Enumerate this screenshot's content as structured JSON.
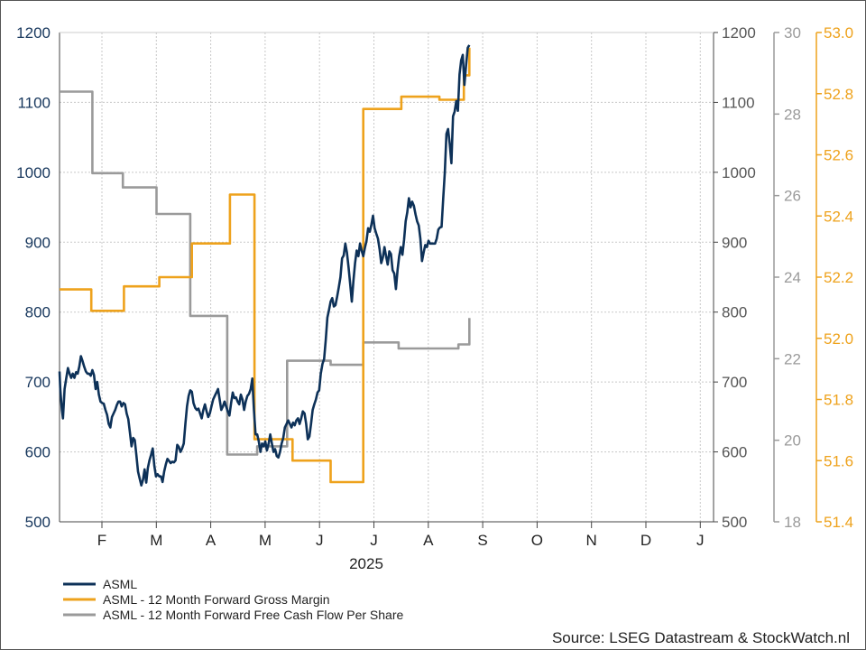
{
  "chart_data": {
    "type": "line",
    "xlabel": "2025",
    "x_months": [
      "F",
      "M",
      "A",
      "M",
      "J",
      "J",
      "A",
      "S",
      "O",
      "N",
      "D",
      "J"
    ],
    "axes": {
      "price_left": {
        "min": 500,
        "max": 1200,
        "ticks": [
          "500",
          "600",
          "700",
          "800",
          "900",
          "1000",
          "1100",
          "1200"
        ],
        "color": "#16365c"
      },
      "price_right": {
        "min": 500,
        "max": 1200,
        "ticks": [
          "500",
          "600",
          "700",
          "800",
          "900",
          "1000",
          "1100",
          "1200"
        ],
        "color": "#555555"
      },
      "fcf": {
        "min": 18,
        "max": 30,
        "ticks": [
          "18",
          "20",
          "22",
          "24",
          "26",
          "28",
          "30"
        ],
        "color": "#9a9a9a"
      },
      "gross_margin": {
        "min": 51.4,
        "max": 53.0,
        "ticks": [
          "51.4",
          "51.6",
          "51.8",
          "52.0",
          "52.2",
          "52.4",
          "52.6",
          "52.8",
          "53.0"
        ],
        "color": "#eea21c"
      }
    },
    "grid": true,
    "legend_position": "bottom-left",
    "series": [
      {
        "name": "ASML",
        "axis": "price_left",
        "color": "#0d3158",
        "points": [
          [
            0,
            715
          ],
          [
            0.03,
            690
          ],
          [
            0.06,
            660
          ],
          [
            0.08,
            648
          ],
          [
            0.11,
            690
          ],
          [
            0.14,
            705
          ],
          [
            0.17,
            720
          ],
          [
            0.2,
            712
          ],
          [
            0.23,
            706
          ],
          [
            0.26,
            712
          ],
          [
            0.29,
            706
          ],
          [
            0.32,
            714
          ],
          [
            0.35,
            712
          ],
          [
            0.38,
            722
          ],
          [
            0.41,
            737
          ],
          [
            0.44,
            730
          ],
          [
            0.47,
            722
          ],
          [
            0.5,
            715
          ],
          [
            0.53,
            712
          ],
          [
            0.56,
            712
          ],
          [
            0.59,
            709
          ],
          [
            0.62,
            717
          ],
          [
            0.65,
            710
          ],
          [
            0.68,
            690
          ],
          [
            0.71,
            700
          ],
          [
            0.74,
            682
          ],
          [
            0.77,
            672
          ],
          [
            0.8,
            670
          ],
          [
            0.83,
            669
          ],
          [
            0.86,
            660
          ],
          [
            0.89,
            653
          ],
          [
            0.92,
            640
          ],
          [
            0.95,
            635
          ],
          [
            0.98,
            650
          ],
          [
            1.01,
            655
          ],
          [
            1.04,
            660
          ],
          [
            1.07,
            667
          ],
          [
            1.1,
            672
          ],
          [
            1.13,
            672
          ],
          [
            1.16,
            665
          ],
          [
            1.19,
            670
          ],
          [
            1.22,
            668
          ],
          [
            1.25,
            655
          ],
          [
            1.28,
            647
          ],
          [
            1.31,
            628
          ],
          [
            1.34,
            608
          ],
          [
            1.37,
            620
          ],
          [
            1.4,
            617
          ],
          [
            1.43,
            595
          ],
          [
            1.46,
            572
          ],
          [
            1.49,
            562
          ],
          [
            1.52,
            552
          ],
          [
            1.55,
            560
          ],
          [
            1.58,
            575
          ],
          [
            1.61,
            556
          ],
          [
            1.64,
            577
          ],
          [
            1.67,
            588
          ],
          [
            1.7,
            596
          ],
          [
            1.73,
            605
          ],
          [
            1.76,
            580
          ],
          [
            1.79,
            565
          ],
          [
            1.82,
            568
          ],
          [
            1.85,
            565
          ],
          [
            1.88,
            565
          ],
          [
            1.91,
            557
          ],
          [
            1.94,
            572
          ],
          [
            1.97,
            582
          ],
          [
            2.0,
            590
          ],
          [
            2.03,
            587
          ],
          [
            2.06,
            584
          ],
          [
            2.09,
            586
          ],
          [
            2.12,
            585
          ],
          [
            2.15,
            588
          ],
          [
            2.18,
            610
          ],
          [
            2.21,
            607
          ],
          [
            2.24,
            600
          ],
          [
            2.27,
            605
          ],
          [
            2.3,
            612
          ],
          [
            2.33,
            640
          ],
          [
            2.36,
            665
          ],
          [
            2.39,
            680
          ],
          [
            2.42,
            688
          ],
          [
            2.45,
            686
          ],
          [
            2.48,
            670
          ],
          [
            2.51,
            663
          ],
          [
            2.54,
            660
          ],
          [
            2.57,
            662
          ],
          [
            2.6,
            655
          ],
          [
            2.63,
            648
          ],
          [
            2.66,
            660
          ],
          [
            2.69,
            668
          ],
          [
            2.72,
            658
          ],
          [
            2.75,
            650
          ],
          [
            2.78,
            655
          ],
          [
            2.81,
            665
          ],
          [
            2.84,
            675
          ],
          [
            2.87,
            680
          ],
          [
            2.9,
            685
          ],
          [
            2.93,
            690
          ],
          [
            2.96,
            675
          ],
          [
            2.99,
            660
          ],
          [
            3.02,
            665
          ],
          [
            3.05,
            672
          ],
          [
            3.08,
            665
          ],
          [
            3.11,
            658
          ],
          [
            3.14,
            652
          ],
          [
            3.17,
            670
          ],
          [
            3.2,
            685
          ],
          [
            3.23,
            677
          ],
          [
            3.26,
            678
          ],
          [
            3.29,
            672
          ],
          [
            3.32,
            668
          ],
          [
            3.35,
            682
          ],
          [
            3.38,
            675
          ],
          [
            3.41,
            660
          ],
          [
            3.44,
            672
          ],
          [
            3.47,
            680
          ],
          [
            3.5,
            683
          ],
          [
            3.53,
            690
          ],
          [
            3.56,
            705
          ],
          [
            3.59,
            660
          ],
          [
            3.62,
            625
          ],
          [
            3.65,
            625
          ],
          [
            3.68,
            615
          ],
          [
            3.71,
            600
          ],
          [
            3.74,
            612
          ],
          [
            3.77,
            608
          ],
          [
            3.8,
            615
          ],
          [
            3.83,
            602
          ],
          [
            3.86,
            612
          ],
          [
            3.89,
            625
          ],
          [
            3.92,
            612
          ],
          [
            3.95,
            600
          ],
          [
            3.98,
            604
          ],
          [
            4.01,
            594
          ],
          [
            4.04,
            592
          ],
          [
            4.07,
            600
          ],
          [
            4.1,
            612
          ],
          [
            4.13,
            620
          ],
          [
            4.16,
            635
          ],
          [
            4.19,
            640
          ],
          [
            4.22,
            645
          ],
          [
            4.25,
            640
          ],
          [
            4.28,
            635
          ],
          [
            4.31,
            642
          ],
          [
            4.34,
            638
          ],
          [
            4.37,
            645
          ],
          [
            4.4,
            648
          ],
          [
            4.43,
            640
          ],
          [
            4.46,
            648
          ],
          [
            4.49,
            658
          ],
          [
            4.52,
            655
          ],
          [
            4.55,
            640
          ],
          [
            4.58,
            618
          ],
          [
            4.61,
            622
          ],
          [
            4.64,
            640
          ],
          [
            4.67,
            660
          ],
          [
            4.7,
            668
          ],
          [
            4.73,
            675
          ],
          [
            4.76,
            685
          ],
          [
            4.79,
            688
          ],
          [
            4.82,
            712
          ],
          [
            4.85,
            726
          ],
          [
            4.88,
            733
          ],
          [
            4.91,
            760
          ],
          [
            4.94,
            792
          ],
          [
            4.97,
            803
          ],
          [
            5.0,
            815
          ],
          [
            5.03,
            820
          ],
          [
            5.06,
            808
          ],
          [
            5.09,
            810
          ],
          [
            5.12,
            822
          ],
          [
            5.15,
            835
          ],
          [
            5.18,
            850
          ],
          [
            5.21,
            877
          ],
          [
            5.24,
            881
          ],
          [
            5.27,
            898
          ],
          [
            5.3,
            885
          ],
          [
            5.33,
            864
          ],
          [
            5.36,
            840
          ],
          [
            5.39,
            815
          ],
          [
            5.42,
            845
          ],
          [
            5.45,
            870
          ],
          [
            5.48,
            888
          ],
          [
            5.51,
            880
          ],
          [
            5.54,
            898
          ],
          [
            5.57,
            888
          ],
          [
            5.6,
            880
          ],
          [
            5.63,
            892
          ],
          [
            5.66,
            902
          ],
          [
            5.69,
            920
          ],
          [
            5.72,
            915
          ],
          [
            5.75,
            925
          ],
          [
            5.78,
            938
          ],
          [
            5.81,
            920
          ],
          [
            5.84,
            912
          ],
          [
            5.87,
            905
          ],
          [
            5.9,
            890
          ],
          [
            5.93,
            870
          ],
          [
            5.96,
            878
          ],
          [
            5.99,
            893
          ],
          [
            6.02,
            880
          ],
          [
            6.05,
            868
          ],
          [
            6.08,
            887
          ],
          [
            6.11,
            883
          ],
          [
            6.14,
            860
          ],
          [
            6.17,
            855
          ],
          [
            6.2,
            833
          ],
          [
            6.23,
            860
          ],
          [
            6.26,
            880
          ],
          [
            6.29,
            893
          ],
          [
            6.32,
            882
          ],
          [
            6.35,
            903
          ],
          [
            6.38,
            930
          ],
          [
            6.41,
            943
          ],
          [
            6.44,
            963
          ],
          [
            6.47,
            950
          ],
          [
            6.5,
            958
          ],
          [
            6.53,
            952
          ],
          [
            6.56,
            940
          ],
          [
            6.59,
            930
          ],
          [
            6.62,
            924
          ],
          [
            6.65,
            905
          ],
          [
            6.68,
            873
          ],
          [
            6.71,
            885
          ],
          [
            6.74,
            896
          ],
          [
            6.77,
            893
          ],
          [
            6.8,
            902
          ],
          [
            6.83,
            898
          ],
          [
            6.86,
            898
          ],
          [
            6.89,
            898
          ],
          [
            6.92,
            898
          ],
          [
            6.95,
            905
          ],
          [
            6.98,
            918
          ],
          [
            7.01,
            921
          ],
          [
            7.04,
            922
          ],
          [
            7.07,
            962
          ],
          [
            7.1,
            1000
          ],
          [
            7.13,
            1055
          ],
          [
            7.16,
            1062
          ],
          [
            7.19,
            1040
          ],
          [
            7.22,
            1013
          ],
          [
            7.25,
            1080
          ],
          [
            7.28,
            1087
          ],
          [
            7.31,
            1102
          ],
          [
            7.34,
            1088
          ],
          [
            7.37,
            1140
          ],
          [
            7.4,
            1160
          ],
          [
            7.43,
            1168
          ],
          [
            7.46,
            1125
          ],
          [
            7.49,
            1152
          ],
          [
            7.52,
            1178
          ],
          [
            7.55,
            1182
          ]
        ]
      },
      {
        "name": "ASML - 12 Month Forward Gross Margin",
        "axis": "gross_margin",
        "color": "#eea21c",
        "points": [
          [
            0,
            52.16
          ],
          [
            0.6,
            52.16
          ],
          [
            0.6,
            52.09
          ],
          [
            1.2,
            52.09
          ],
          [
            1.2,
            52.17
          ],
          [
            1.85,
            52.17
          ],
          [
            1.85,
            52.2
          ],
          [
            2.45,
            52.2
          ],
          [
            2.45,
            52.31
          ],
          [
            3.15,
            52.31
          ],
          [
            3.15,
            52.47
          ],
          [
            3.6,
            52.47
          ],
          [
            3.6,
            51.67
          ],
          [
            4.3,
            51.67
          ],
          [
            4.3,
            51.6
          ],
          [
            5.0,
            51.6
          ],
          [
            5.0,
            51.53
          ],
          [
            5.6,
            51.53
          ],
          [
            5.6,
            52.75
          ],
          [
            6.3,
            52.75
          ],
          [
            6.3,
            52.79
          ],
          [
            7.0,
            52.79
          ],
          [
            7.0,
            52.78
          ],
          [
            7.45,
            52.78
          ],
          [
            7.45,
            52.86
          ],
          [
            7.55,
            52.86
          ],
          [
            7.55,
            52.95
          ]
        ]
      },
      {
        "name": "ASML - 12 Month Forward Free Cash Flow Per Share",
        "axis": "fcf",
        "color": "#9a9a9a",
        "points": [
          [
            0,
            28.55
          ],
          [
            0.62,
            28.55
          ],
          [
            0.62,
            26.55
          ],
          [
            1.18,
            26.55
          ],
          [
            1.18,
            26.2
          ],
          [
            1.8,
            26.2
          ],
          [
            1.8,
            25.55
          ],
          [
            2.42,
            25.55
          ],
          [
            2.42,
            23.05
          ],
          [
            3.1,
            23.05
          ],
          [
            3.1,
            19.65
          ],
          [
            3.65,
            19.65
          ],
          [
            3.65,
            19.85
          ],
          [
            4.2,
            19.85
          ],
          [
            4.2,
            21.95
          ],
          [
            5.0,
            21.95
          ],
          [
            5.0,
            21.85
          ],
          [
            5.6,
            21.85
          ],
          [
            5.6,
            22.4
          ],
          [
            6.25,
            22.4
          ],
          [
            6.25,
            22.25
          ],
          [
            7.35,
            22.25
          ],
          [
            7.35,
            22.35
          ],
          [
            7.55,
            22.35
          ],
          [
            7.55,
            23.0
          ]
        ]
      }
    ],
    "source": "Source: LSEG Datastream & StockWatch.nl"
  }
}
